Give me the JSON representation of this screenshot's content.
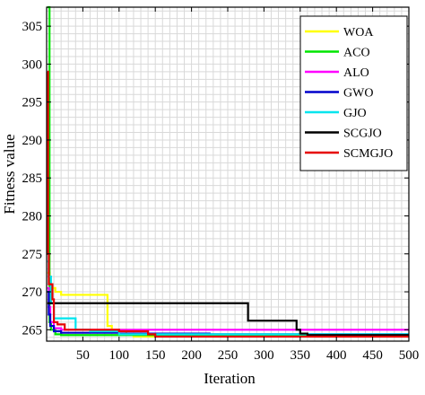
{
  "chart_data": {
    "type": "line",
    "title": "",
    "xlabel": "Iteration",
    "ylabel": "Fitness value",
    "xlim": [
      0,
      500
    ],
    "ylim": [
      263.5,
      307.5
    ],
    "xticks": [
      50,
      100,
      150,
      200,
      250,
      300,
      350,
      400,
      450,
      500
    ],
    "yticks": [
      265,
      270,
      275,
      280,
      285,
      290,
      295,
      300,
      305
    ],
    "grid": true,
    "legend_position": "top-right",
    "series": [
      {
        "name": "WOA",
        "color": "#ffff00",
        "points": [
          [
            1,
            272.5
          ],
          [
            4,
            270.5
          ],
          [
            12,
            270.0
          ],
          [
            20,
            269.6
          ],
          [
            82,
            269.6
          ],
          [
            84,
            265.5
          ],
          [
            90,
            265.0
          ],
          [
            110,
            264.5
          ],
          [
            120,
            264.1
          ],
          [
            500,
            264.1
          ]
        ]
      },
      {
        "name": "ACO",
        "color": "#00e600",
        "points": [
          [
            1,
            307.5
          ],
          [
            3,
            307.5
          ],
          [
            4,
            266.0
          ],
          [
            6,
            265.0
          ],
          [
            12,
            264.4
          ],
          [
            20,
            264.3
          ],
          [
            500,
            264.3
          ]
        ]
      },
      {
        "name": "ALO",
        "color": "#ff00ff",
        "points": [
          [
            1,
            270.5
          ],
          [
            3,
            268.0
          ],
          [
            5,
            266.0
          ],
          [
            10,
            265.2
          ],
          [
            20,
            265.0
          ],
          [
            500,
            265.0
          ]
        ]
      },
      {
        "name": "GWO",
        "color": "#0000cc",
        "points": [
          [
            1,
            270.0
          ],
          [
            3,
            267.0
          ],
          [
            5,
            265.5
          ],
          [
            10,
            264.8
          ],
          [
            20,
            264.6
          ],
          [
            100,
            264.5
          ],
          [
            225,
            264.4
          ],
          [
            500,
            264.4
          ]
        ]
      },
      {
        "name": "GJO",
        "color": "#00e5ee",
        "points": [
          [
            1,
            274.0
          ],
          [
            3,
            272.0
          ],
          [
            6,
            268.5
          ],
          [
            10,
            266.5
          ],
          [
            30,
            266.5
          ],
          [
            38,
            266.5
          ],
          [
            40,
            265.0
          ],
          [
            60,
            264.8
          ],
          [
            100,
            264.4
          ],
          [
            500,
            264.4
          ]
        ]
      },
      {
        "name": "SCGJO",
        "color": "#000000",
        "points": [
          [
            1,
            268.5
          ],
          [
            275,
            268.5
          ],
          [
            278,
            266.2
          ],
          [
            340,
            266.2
          ],
          [
            345,
            265.0
          ],
          [
            350,
            264.5
          ],
          [
            360,
            264.3
          ],
          [
            500,
            264.3
          ]
        ]
      },
      {
        "name": "SCMGJO",
        "color": "#e60000",
        "points": [
          [
            1,
            299.0
          ],
          [
            2,
            275.0
          ],
          [
            3,
            271.0
          ],
          [
            8,
            269.0
          ],
          [
            10,
            266.0
          ],
          [
            15,
            265.7
          ],
          [
            25,
            265.0
          ],
          [
            100,
            264.8
          ],
          [
            140,
            264.4
          ],
          [
            150,
            264.1
          ],
          [
            500,
            264.1
          ]
        ]
      }
    ]
  }
}
